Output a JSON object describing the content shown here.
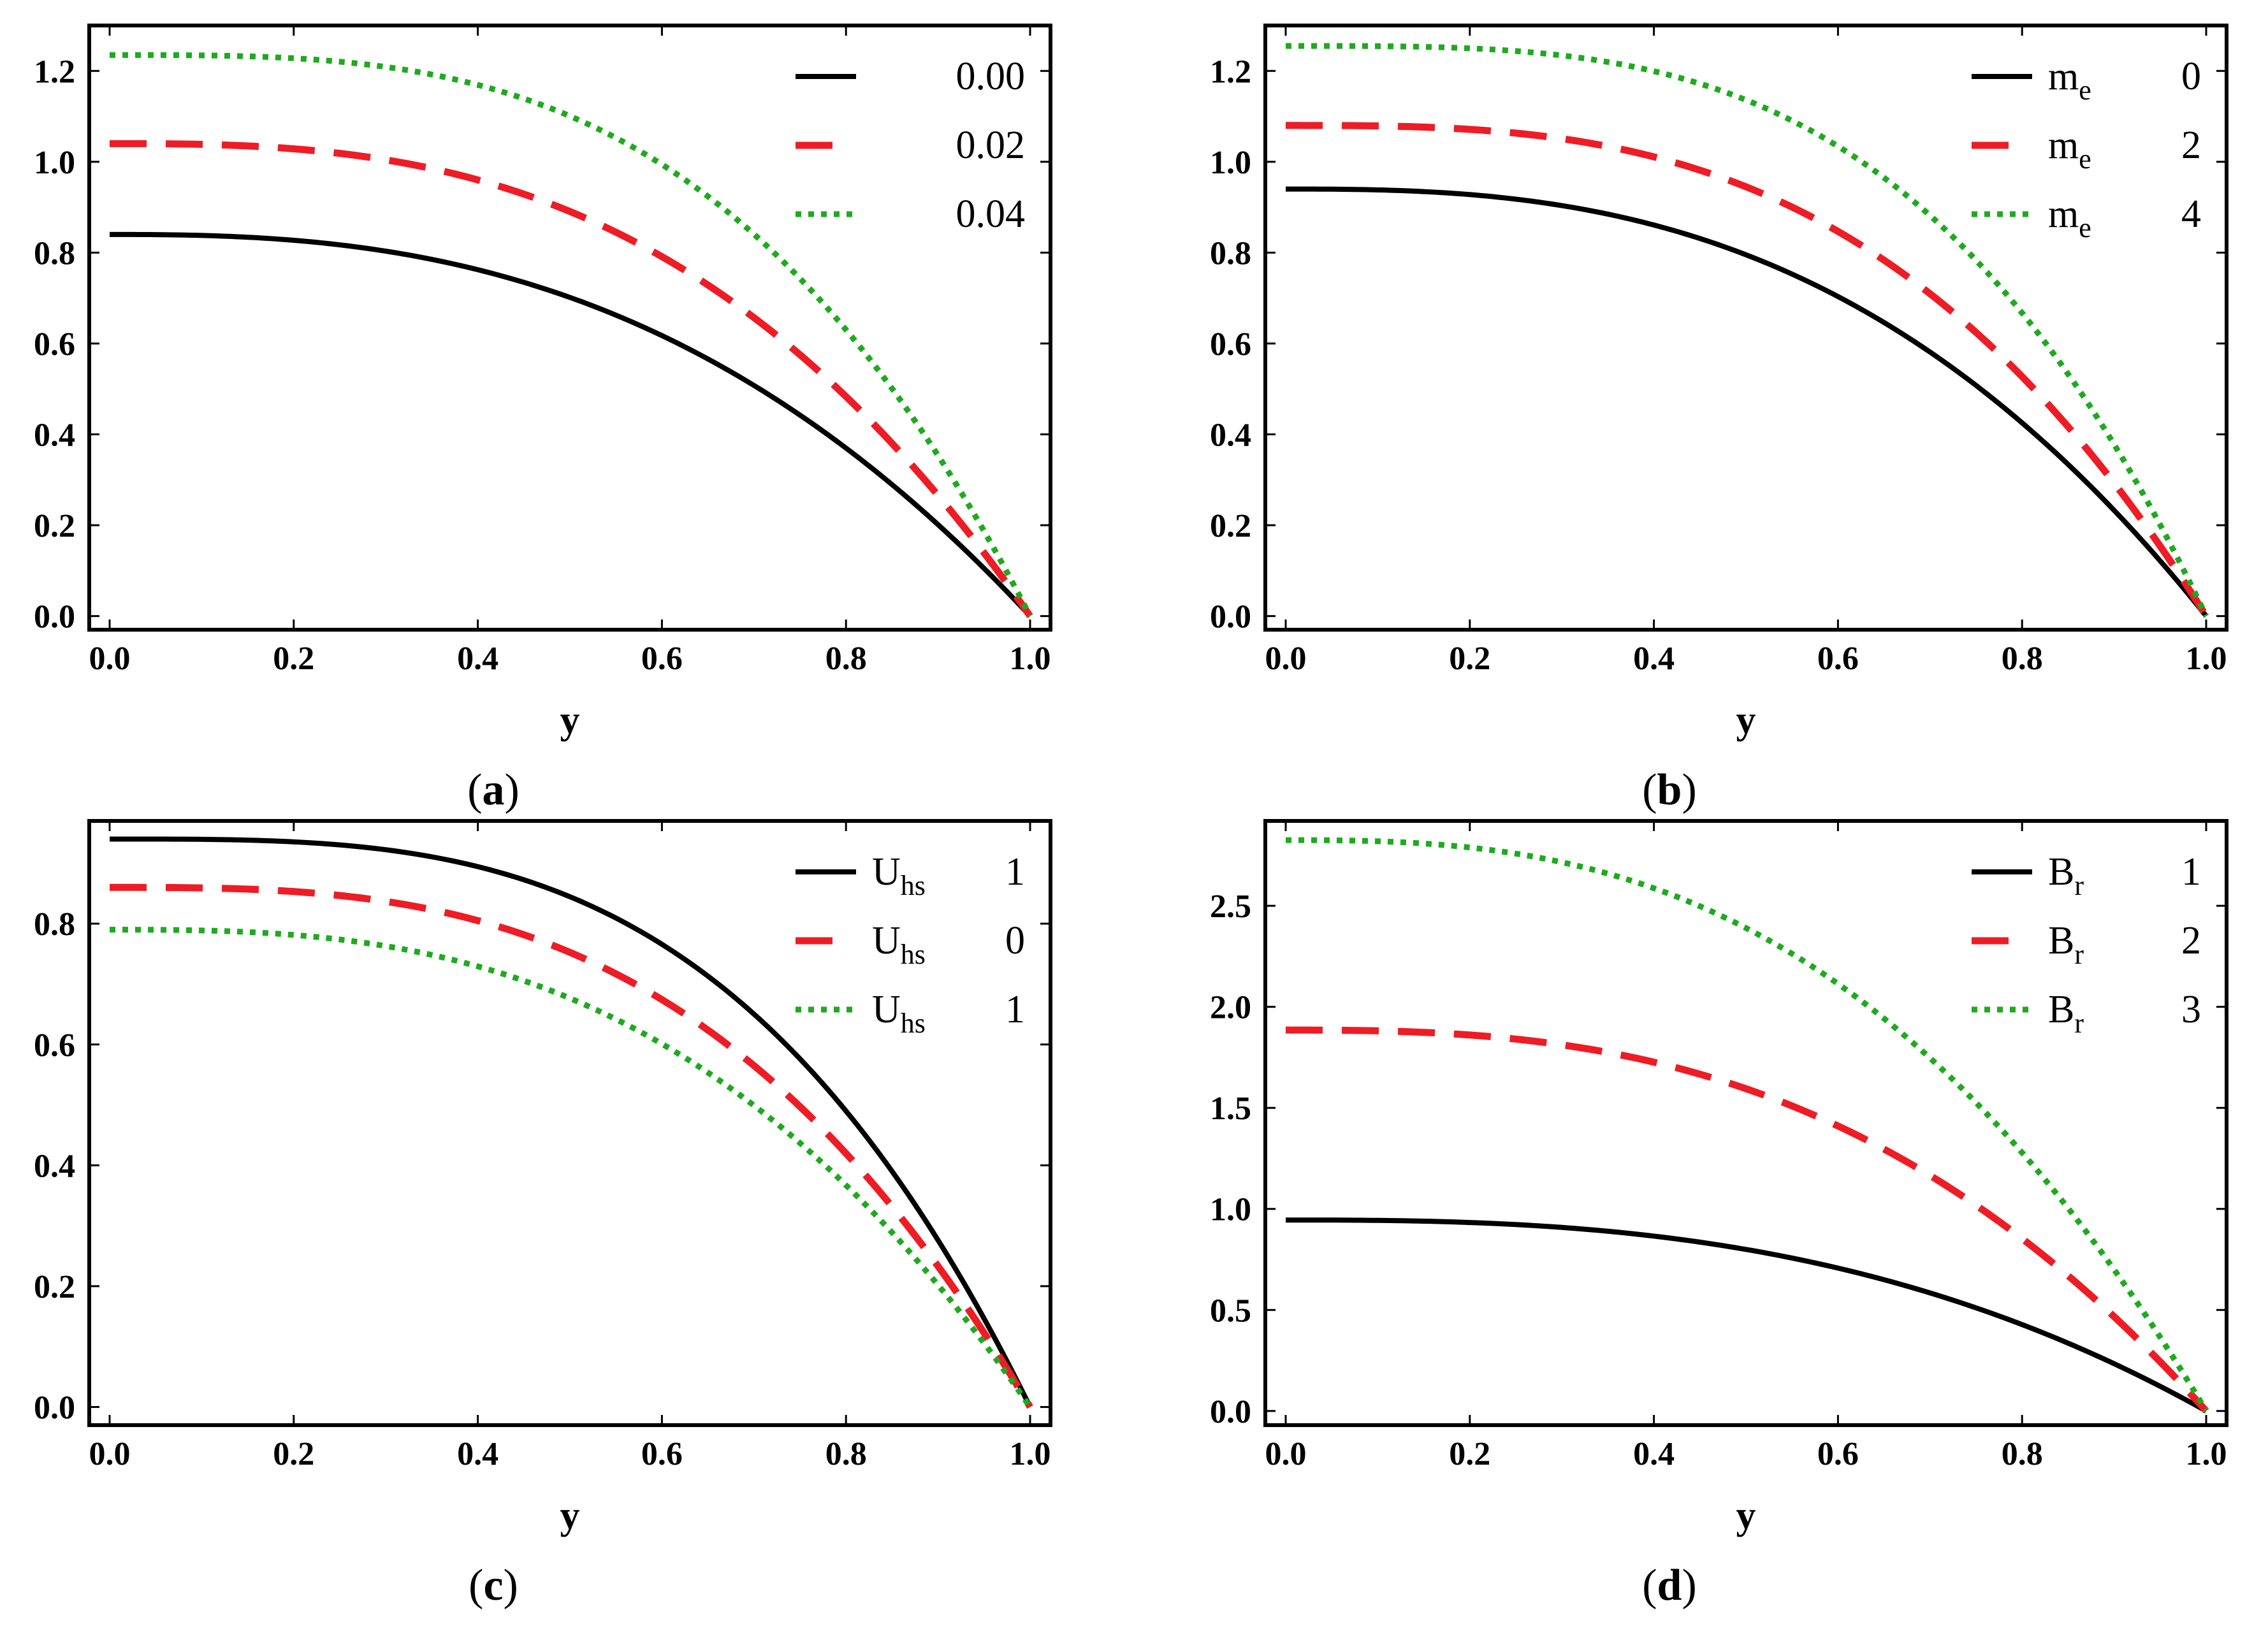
{
  "chart_data": [
    {
      "id": "a",
      "type": "line",
      "panel_label": "a",
      "title": "",
      "xlabel": "y",
      "ylabel": "",
      "xlim": [
        0,
        1
      ],
      "ylim": [
        -0.03,
        1.3
      ],
      "grid": false,
      "legend_position": "top-right",
      "xticks": [
        0.0,
        0.2,
        0.4,
        0.6,
        0.8,
        1.0
      ],
      "xtick_labels": [
        "0.0",
        "0.2",
        "0.4",
        "0.6",
        "0.8",
        "1.0"
      ],
      "yticks": [
        0.0,
        0.2,
        0.4,
        0.6,
        0.8,
        1.0,
        1.2
      ],
      "ytick_labels": [
        "0.0",
        "0.2",
        "0.4",
        "0.6",
        "0.8",
        "1.0",
        "1.2"
      ],
      "series": [
        {
          "name": "0.00",
          "param": "",
          "sub": "",
          "value": "0.00",
          "style": "solid",
          "color": "#000000",
          "y0": 0.84,
          "p": 2.6
        },
        {
          "name": "0.02",
          "param": "",
          "sub": "",
          "value": "0.02",
          "style": "dashed",
          "color": "#ee1c25",
          "y0": 1.04,
          "p": 2.8
        },
        {
          "name": "0.04",
          "param": "",
          "sub": "",
          "value": "0.04",
          "style": "dotted",
          "color": "#1eaa1e",
          "y0": 1.235,
          "p": 3.2
        }
      ]
    },
    {
      "id": "b",
      "type": "line",
      "panel_label": "b",
      "title": "",
      "xlabel": "y",
      "ylabel": "",
      "xlim": [
        0,
        1
      ],
      "ylim": [
        -0.03,
        1.3
      ],
      "grid": false,
      "legend_position": "top-right",
      "xticks": [
        0.0,
        0.2,
        0.4,
        0.6,
        0.8,
        1.0
      ],
      "xtick_labels": [
        "0.0",
        "0.2",
        "0.4",
        "0.6",
        "0.8",
        "1.0"
      ],
      "yticks": [
        0.0,
        0.2,
        0.4,
        0.6,
        0.8,
        1.0,
        1.2
      ],
      "ytick_labels": [
        "0.0",
        "0.2",
        "0.4",
        "0.6",
        "0.8",
        "1.0",
        "1.2"
      ],
      "series": [
        {
          "name": "me 0",
          "param": "m",
          "sub": "e",
          "value": "0",
          "style": "solid",
          "color": "#000000",
          "y0": 0.94,
          "p": 2.7
        },
        {
          "name": "me 2",
          "param": "m",
          "sub": "e",
          "value": "2",
          "style": "dashed",
          "color": "#ee1c25",
          "y0": 1.08,
          "p": 3.0
        },
        {
          "name": "me 4",
          "param": "m",
          "sub": "e",
          "value": "4",
          "style": "dotted",
          "color": "#1eaa1e",
          "y0": 1.255,
          "p": 3.4
        }
      ]
    },
    {
      "id": "c",
      "type": "line",
      "panel_label": "c",
      "title": "",
      "xlabel": "y",
      "ylabel": "",
      "xlim": [
        0,
        1
      ],
      "ylim": [
        -0.03,
        0.97
      ],
      "grid": false,
      "legend_position": "top-right",
      "xticks": [
        0.0,
        0.2,
        0.4,
        0.6,
        0.8,
        1.0
      ],
      "xtick_labels": [
        "0.0",
        "0.2",
        "0.4",
        "0.6",
        "0.8",
        "1.0"
      ],
      "yticks": [
        0.0,
        0.2,
        0.4,
        0.6,
        0.8
      ],
      "ytick_labels": [
        "0.0",
        "0.2",
        "0.4",
        "0.6",
        "0.8"
      ],
      "series": [
        {
          "name": "Uhs 1",
          "param": "U",
          "sub": "hs",
          "value": "1",
          "style": "solid",
          "color": "#000000",
          "y0": 0.94,
          "p": 3.3
        },
        {
          "name": "Uhs 0",
          "param": "U",
          "sub": "hs",
          "value": "0",
          "style": "dashed",
          "color": "#ee1c25",
          "y0": 0.86,
          "p": 3.0
        },
        {
          "name": "Uhs 1",
          "param": "U",
          "sub": "hs",
          "value": "1",
          "style": "dotted",
          "color": "#1eaa1e",
          "y0": 0.79,
          "p": 2.8
        }
      ]
    },
    {
      "id": "d",
      "type": "line",
      "panel_label": "d",
      "title": "",
      "xlabel": "y",
      "ylabel": "",
      "xlim": [
        0,
        1
      ],
      "ylim": [
        -0.07,
        2.92
      ],
      "grid": false,
      "legend_position": "top-right",
      "xticks": [
        0.0,
        0.2,
        0.4,
        0.6,
        0.8,
        1.0
      ],
      "xtick_labels": [
        "0.0",
        "0.2",
        "0.4",
        "0.6",
        "0.8",
        "1.0"
      ],
      "yticks": [
        0.0,
        0.5,
        1.0,
        1.5,
        2.0,
        2.5
      ],
      "ytick_labels": [
        "0.0",
        "0.5",
        "1.0",
        "1.5",
        "2.0",
        "2.5"
      ],
      "series": [
        {
          "name": "Br 1",
          "param": "B",
          "sub": "r",
          "value": "1",
          "style": "solid",
          "color": "#000000",
          "y0": 0.945,
          "p": 2.7
        },
        {
          "name": "Br 2",
          "param": "B",
          "sub": "r",
          "value": "2",
          "style": "dashed",
          "color": "#ee1c25",
          "y0": 1.885,
          "p": 2.7
        },
        {
          "name": "Br 3",
          "param": "B",
          "sub": "r",
          "value": "3",
          "style": "dotted",
          "color": "#1eaa1e",
          "y0": 2.825,
          "p": 2.7
        }
      ]
    }
  ]
}
